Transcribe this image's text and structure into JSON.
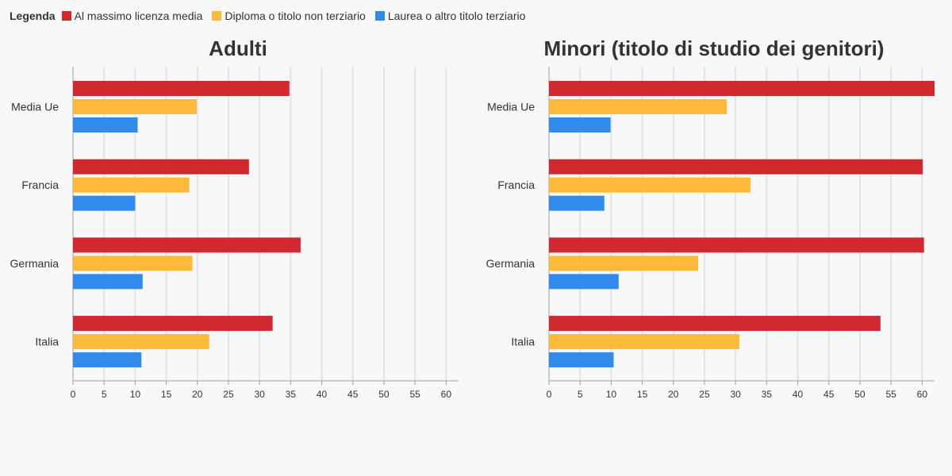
{
  "legend": {
    "title": "Legenda",
    "items": [
      {
        "label": "Al massimo licenza media",
        "color": "#d0282f"
      },
      {
        "label": "Diploma o titolo non terziario",
        "color": "#fdb93a"
      },
      {
        "label": "Laurea o altro titolo terziario",
        "color": "#318bec"
      }
    ]
  },
  "chart_data": [
    {
      "type": "bar",
      "orientation": "horizontal",
      "title": "Adulti",
      "categories": [
        "Media Ue",
        "Francia",
        "Germania",
        "Italia"
      ],
      "series": [
        {
          "name": "Al massimo licenza media",
          "values": [
            34.8,
            28.3,
            36.6,
            32.1
          ]
        },
        {
          "name": "Diploma o titolo non terziario",
          "values": [
            19.9,
            18.7,
            19.2,
            21.9
          ]
        },
        {
          "name": "Laurea o altro titolo terziario",
          "values": [
            10.4,
            10.0,
            11.2,
            11.0
          ]
        }
      ],
      "xlim": [
        0,
        62
      ],
      "xticks": [
        0,
        5,
        10,
        15,
        20,
        25,
        30,
        35,
        40,
        45,
        50,
        55,
        60
      ],
      "grid": true
    },
    {
      "type": "bar",
      "orientation": "horizontal",
      "title": "Minori (titolo di studio dei genitori)",
      "categories": [
        "Media Ue",
        "Francia",
        "Germania",
        "Italia"
      ],
      "series": [
        {
          "name": "Al massimo licenza media",
          "values": [
            62.0,
            60.1,
            60.3,
            53.3
          ]
        },
        {
          "name": "Diploma o titolo non terziario",
          "values": [
            28.6,
            32.4,
            24.0,
            30.6
          ]
        },
        {
          "name": "Laurea o altro titolo terziario",
          "values": [
            9.9,
            8.9,
            11.2,
            10.4
          ]
        }
      ],
      "xlim": [
        0,
        62
      ],
      "xticks": [
        0,
        5,
        10,
        15,
        20,
        25,
        30,
        35,
        40,
        45,
        50,
        55,
        60
      ],
      "grid": true
    }
  ]
}
